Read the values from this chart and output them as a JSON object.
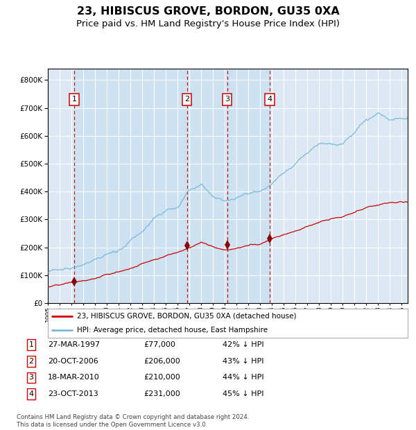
{
  "title": "23, HIBISCUS GROVE, BORDON, GU35 0XA",
  "subtitle": "Price paid vs. HM Land Registry's House Price Index (HPI)",
  "title_fontsize": 11.5,
  "subtitle_fontsize": 9.5,
  "background_color": "#ffffff",
  "plot_bg_color": "#dce9f5",
  "grid_color": "#ffffff",
  "xmin": 1995.0,
  "xmax": 2025.5,
  "ymin": 0,
  "ymax": 840000,
  "yticks": [
    0,
    100000,
    200000,
    300000,
    400000,
    500000,
    600000,
    700000,
    800000
  ],
  "xtick_years": [
    1995,
    1996,
    1997,
    1998,
    1999,
    2000,
    2001,
    2002,
    2003,
    2004,
    2005,
    2006,
    2007,
    2008,
    2009,
    2010,
    2011,
    2012,
    2013,
    2014,
    2015,
    2016,
    2017,
    2018,
    2019,
    2020,
    2021,
    2022,
    2023,
    2024,
    2025
  ],
  "hpi_color": "#7ab8d9",
  "price_color": "#cc0000",
  "marker_color": "#8b0000",
  "sale_marker_size": 7,
  "vline_color": "#cc0000",
  "shade_color": "#c6dff0",
  "sales": [
    {
      "label": 1,
      "date_x": 1997.23,
      "price": 77000,
      "date_str": "27-MAR-1997",
      "price_str": "£77,000",
      "pct_str": "42% ↓ HPI"
    },
    {
      "label": 2,
      "date_x": 2006.8,
      "price": 206000,
      "date_str": "20-OCT-2006",
      "price_str": "£206,000",
      "pct_str": "43% ↓ HPI"
    },
    {
      "label": 3,
      "date_x": 2010.21,
      "price": 210000,
      "date_str": "18-MAR-2010",
      "price_str": "£210,000",
      "pct_str": "44% ↓ HPI"
    },
    {
      "label": 4,
      "date_x": 2013.81,
      "price": 231000,
      "date_str": "23-OCT-2013",
      "price_str": "£231,000",
      "pct_str": "45% ↓ HPI"
    }
  ],
  "legend_line1": "23, HIBISCUS GROVE, BORDON, GU35 0XA (detached house)",
  "legend_line2": "HPI: Average price, detached house, East Hampshire",
  "footer1": "Contains HM Land Registry data © Crown copyright and database right 2024.",
  "footer2": "This data is licensed under the Open Government Licence v3.0.",
  "hpi_anchors_x": [
    1995,
    1997,
    1999,
    2001,
    2003,
    2004,
    2006,
    2007,
    2008,
    2009,
    2010,
    2011,
    2012,
    2013,
    2014,
    2015,
    2016,
    2017,
    2018,
    2019,
    2020,
    2021,
    2022,
    2023,
    2024,
    2025
  ],
  "hpi_anchors_y": [
    110000,
    127000,
    148000,
    175000,
    240000,
    285000,
    340000,
    385000,
    405000,
    360000,
    345000,
    360000,
    375000,
    385000,
    415000,
    460000,
    500000,
    530000,
    560000,
    565000,
    570000,
    600000,
    645000,
    670000,
    650000,
    650000
  ],
  "red_anchors_x": [
    1995,
    1996,
    1997,
    1998,
    1999,
    2000,
    2001,
    2002,
    2003,
    2004,
    2005,
    2006,
    2007,
    2008,
    2009,
    2010,
    2011,
    2012,
    2013,
    2014,
    2015,
    2016,
    2017,
    2018,
    2019,
    2020,
    2021,
    2022,
    2023,
    2024,
    2025
  ],
  "red_anchors_y": [
    58000,
    62000,
    68000,
    74000,
    82000,
    95000,
    105000,
    118000,
    135000,
    155000,
    170000,
    185000,
    205000,
    225000,
    210000,
    198000,
    205000,
    215000,
    222000,
    245000,
    262000,
    278000,
    292000,
    308000,
    318000,
    322000,
    335000,
    348000,
    358000,
    365000,
    368000
  ]
}
